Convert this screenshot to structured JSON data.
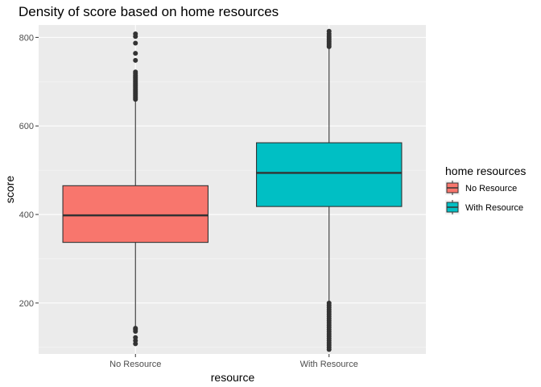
{
  "chart_data": {
    "type": "boxplot",
    "title": "Density of score based on home resources",
    "xlabel": "resource",
    "ylabel": "score",
    "categories": [
      "No Resource",
      "With Resource"
    ],
    "ylim": [
      85,
      828
    ],
    "yticks": [
      200,
      400,
      600,
      800
    ],
    "grid": true,
    "legend": {
      "title": "home resources",
      "position": "right",
      "entries": [
        "No Resource",
        "With Resource"
      ]
    },
    "colors": {
      "No Resource": "#F8766D",
      "With Resource": "#00BFC4"
    },
    "boxes": [
      {
        "category": "No Resource",
        "whisker_low": 140,
        "q1": 337,
        "median": 398,
        "q3": 465,
        "whisker_high": 658,
        "outliers": [
          108,
          115,
          122,
          136,
          140,
          143,
          660,
          663,
          666,
          669,
          672,
          675,
          678,
          681,
          684,
          687,
          690,
          693,
          696,
          699,
          702,
          705,
          708,
          711,
          714,
          718,
          722,
          748,
          764,
          787,
          802,
          808
        ]
      },
      {
        "category": "With Resource",
        "whisker_low": 202,
        "q1": 418,
        "median": 494,
        "q3": 562,
        "whisker_high": 777,
        "outliers": [
          95,
          100,
          105,
          110,
          115,
          120,
          125,
          130,
          135,
          140,
          145,
          150,
          155,
          160,
          165,
          170,
          175,
          180,
          185,
          190,
          195,
          200,
          779,
          783,
          787,
          791,
          795,
          799,
          803,
          808,
          814
        ]
      }
    ]
  }
}
